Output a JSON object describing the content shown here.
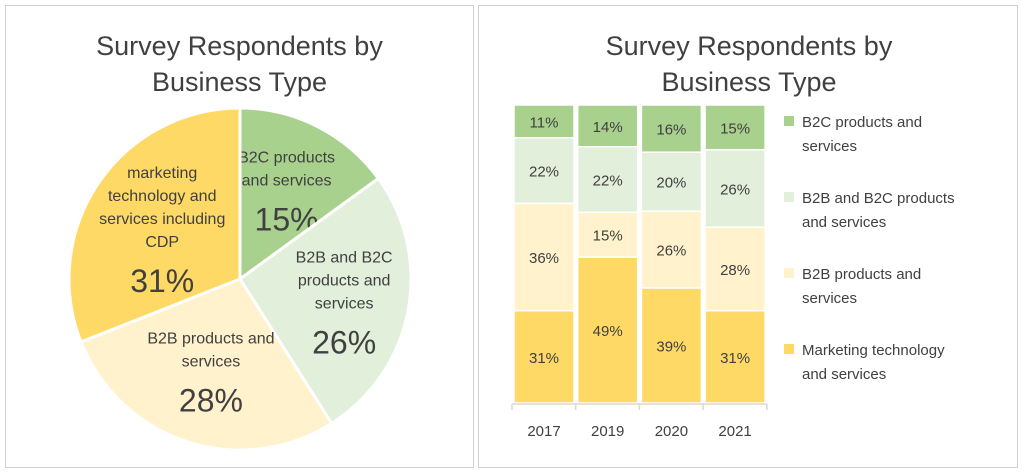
{
  "chart_data": [
    {
      "type": "pie",
      "title": "Survey Respondents by Business Type",
      "slices": [
        {
          "label": "B2C products and services",
          "value": 15,
          "display": "15%",
          "color": "#a9d18e"
        },
        {
          "label": "B2B and B2C products and services",
          "value": 26,
          "display": "26%",
          "color": "#e2efda"
        },
        {
          "label": "B2B products and services",
          "value": 28,
          "display": "28%",
          "color": "#fff2cc"
        },
        {
          "label": "marketing technology and services including CDP",
          "value": 31,
          "display": "31%",
          "color": "#ffd966"
        }
      ]
    },
    {
      "type": "bar",
      "stacked": "100%",
      "title": "Survey Respondents by Business Type",
      "categories": [
        "2017",
        "2019",
        "2020",
        "2021"
      ],
      "legend_position": "right",
      "series": [
        {
          "name": "Marketing technology and services",
          "values": [
            31,
            49,
            39,
            31
          ],
          "color": "#ffd966"
        },
        {
          "name": "B2B products and services",
          "values": [
            36,
            15,
            26,
            28
          ],
          "color": "#fff2cc"
        },
        {
          "name": "B2B and B2C products and services",
          "values": [
            22,
            22,
            20,
            26
          ],
          "color": "#e2efda"
        },
        {
          "name": "B2C products and services",
          "values": [
            11,
            14,
            16,
            15
          ],
          "color": "#a9d18e"
        }
      ]
    }
  ]
}
